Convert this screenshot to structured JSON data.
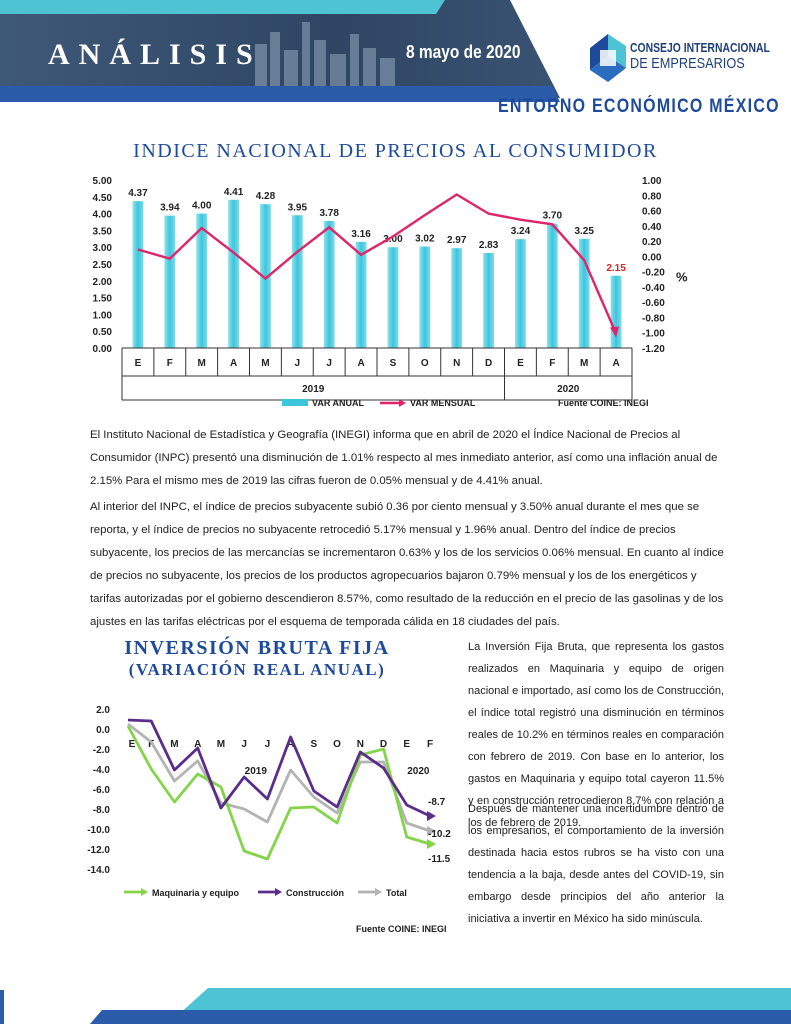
{
  "header": {
    "title": "ANÁLISIS",
    "date": "8 mayo de 2020",
    "logo_line1": "CONSEJO INTERNACIONAL",
    "logo_line2": "DE EMPRESARIOS",
    "section": "ENTORNO ECONÓMICO MÉXICO",
    "colors": {
      "navy": "#2e4664",
      "teal": "#4ec3d4",
      "blue": "#1d4a9a"
    }
  },
  "inpc": {
    "title": "INDICE NACIONAL DE PRECIOS AL CONSUMIDOR",
    "source": "Fuente COINE: INEGI",
    "paragraphs": [
      "El Instituto Nacional de Estadística y Geografía (INEGI) informa que en abril de 2020 el Índice Nacional de Precios al Consumidor (INPC) presentó una disminución de 1.01% respecto al mes inmediato anterior, así como una inflación anual de 2.15% Para el mismo mes de 2019 las cifras fueron de 0.05% mensual y de 4.41% anual.",
      "Al interior del INPC, el índice de precios subyacente subió 0.36 por ciento mensual y 3.50% anual durante el mes que se reporta, y el índice de precios no subyacente retrocedió 5.17% mensual y 1.96% anual.  Dentro del índice de precios subyacente, los precios de las mercancías se incrementaron 0.63% y los de los servicios 0.06% mensual.  En cuanto al índice de precios no subyacente, los precios de los productos agropecuarios bajaron 0.79% mensual y los de los energéticos y tarifas autorizadas por el gobierno descendieron 8.57%, como resultado de la reducción en el precio de las gasolinas y de los ajustes en las tarifas eléctricas por el esquema de temporada cálida en 18 ciudades del país."
    ]
  },
  "ibf": {
    "title": "INVERSIÓN BRUTA FIJA",
    "subtitle": "(VARIACIÓN REAL ANUAL)",
    "source": "Fuente COINE: INEGI",
    "paragraphs": [
      "La Inversión Fija Bruta, que representa los gastos realizados en Maquinaria y equipo de origen nacional e importado, así como los de Construcción, el índice total registró una disminución en términos reales de 10.2% en términos reales en comparación con febrero de 2019. Con base en lo anterior, los gastos en Maquinaria y equipo total cayeron 11.5% y en construcción retrocedieron 8.7% con relación a los de febrero de 2019.",
      "Después de mantener una incertidumbre dentro de los empresarios, el comportamiento de la inversión destinada hacia estos rubros se ha visto con una tendencia a la baja, desde antes del COVID-19, sin embargo desde principios del año anterior la iniciativa a invertir en México ha sido minúscula."
    ]
  },
  "chart_data": [
    {
      "type": "bar",
      "categories": [
        "E",
        "F",
        "M",
        "A",
        "M",
        "J",
        "J",
        "A",
        "S",
        "O",
        "N",
        "D",
        "E",
        "F",
        "M",
        "A"
      ],
      "groups": [
        {
          "label": "2019",
          "count": 12
        },
        {
          "label": "2020",
          "count": 4
        }
      ],
      "series": [
        {
          "name": "VAR ANUAL",
          "type": "bar",
          "axis": "left",
          "color": "#3cc6dc",
          "values": [
            4.37,
            3.94,
            4.0,
            4.41,
            4.28,
            3.95,
            3.78,
            3.16,
            3.0,
            3.02,
            2.97,
            2.83,
            3.24,
            3.7,
            3.25,
            2.15
          ],
          "labels": [
            "4.37",
            "3.94",
            "4.00",
            "4.41",
            "4.28",
            "3.95",
            "3.78",
            "3.16",
            "3.00",
            "3.02",
            "2.97",
            "2.83",
            "3.24",
            "3.70",
            "3.25",
            "2.15"
          ]
        },
        {
          "name": "VAR MENSUAL",
          "type": "line",
          "axis": "right",
          "color": "#e0246a",
          "values": [
            0.09,
            -0.03,
            0.37,
            0.05,
            -0.29,
            0.06,
            0.38,
            0.02,
            0.26,
            0.54,
            0.81,
            0.56,
            0.48,
            0.42,
            -0.05,
            -1.01
          ]
        }
      ],
      "ylim_left": [
        0,
        5
      ],
      "yticks_left": [
        "0.00",
        "0.50",
        "1.00",
        "1.50",
        "2.00",
        "2.50",
        "3.00",
        "3.50",
        "4.00",
        "4.50",
        "5.00"
      ],
      "ylim_right": [
        -1.2,
        1.0
      ],
      "yticks_right": [
        "-1.20",
        "-1.00",
        "-0.80",
        "-0.60",
        "-0.40",
        "-0.20",
        "0.00",
        "0.20",
        "0.40",
        "0.60",
        "0.80",
        "1.00"
      ],
      "ylabel_right": "%",
      "highlight_label": {
        "index": 15,
        "text": "2.15",
        "color": "#e02020"
      },
      "legend": "bottom"
    },
    {
      "type": "line",
      "categories": [
        "E",
        "F",
        "M",
        "A",
        "M",
        "J",
        "J",
        "A",
        "S",
        "O",
        "N",
        "D",
        "E",
        "F"
      ],
      "groups": [
        {
          "label": "2019",
          "count": 12
        },
        {
          "label": "2020",
          "count": 2
        }
      ],
      "series": [
        {
          "name": "Maquinaria y equipo",
          "color": "#84d44a",
          "values": [
            0.3,
            -4.0,
            -7.3,
            -4.5,
            -5.8,
            -12.2,
            -13.0,
            -7.9,
            -7.8,
            -9.4,
            -2.6,
            -2.0,
            -10.8,
            -11.5
          ]
        },
        {
          "name": "Construcción",
          "color": "#5b2d8a",
          "values": [
            0.9,
            0.8,
            -4.1,
            -1.9,
            -7.9,
            -4.8,
            -7.0,
            -0.8,
            -6.2,
            -7.8,
            -2.3,
            -3.9,
            -7.6,
            -8.7
          ]
        },
        {
          "name": "Total",
          "color": "#b3b3b3",
          "values": [
            0.5,
            -1.3,
            -5.2,
            -3.2,
            -7.4,
            -8.0,
            -9.3,
            -4.1,
            -6.8,
            -8.4,
            -3.3,
            -3.3,
            -9.4,
            -10.2
          ]
        }
      ],
      "end_labels": [
        "-8.7",
        "-10.2",
        "-11.5"
      ],
      "ylim": [
        -14,
        2
      ],
      "yticks": [
        "2.0",
        "0.0",
        "-2.0",
        "-4.0",
        "-6.0",
        "-8.0",
        "-10.0",
        "-12.0",
        "-14.0"
      ],
      "legend": "bottom"
    }
  ]
}
